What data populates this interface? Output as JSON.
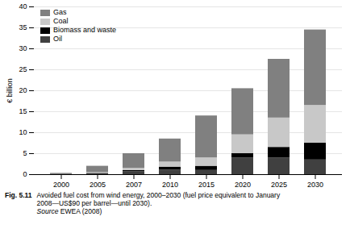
{
  "chart_data": {
    "type": "bar",
    "stacked": true,
    "categories": [
      "2000",
      "2005",
      "2007",
      "2010",
      "2015",
      "2020",
      "2025",
      "2030"
    ],
    "series": [
      {
        "name": "Oil",
        "color": "#404040",
        "values": [
          0.0,
          0.2,
          0.7,
          1.1,
          1.0,
          4.0,
          4.0,
          3.5
        ]
      },
      {
        "name": "Biomass and waste",
        "color": "#000000",
        "values": [
          0.0,
          0.1,
          0.3,
          0.7,
          1.0,
          1.0,
          2.5,
          4.0
        ]
      },
      {
        "name": "Coal",
        "color": "#c8c8c8",
        "values": [
          0.0,
          0.2,
          0.5,
          1.2,
          2.0,
          4.5,
          7.0,
          9.0
        ]
      },
      {
        "name": "Gas",
        "color": "#808080",
        "values": [
          0.3,
          1.5,
          3.5,
          5.5,
          10.0,
          11.0,
          14.0,
          18.0
        ]
      }
    ],
    "ylabel": "€ billion",
    "ylim": [
      0,
      40
    ],
    "yticks": [
      0,
      5,
      10,
      15,
      20,
      25,
      30,
      35,
      40
    ],
    "grid": true,
    "legend": "upper left",
    "caption": {
      "label": "Fig. 5.11",
      "text": "Avoided fuel cost from wind energy, 2000–2030 (fuel price equivalent to January\n2008—US$90 per barrel—until 2030).",
      "source_label": "Source",
      "source": "EWEA (2008)"
    }
  }
}
